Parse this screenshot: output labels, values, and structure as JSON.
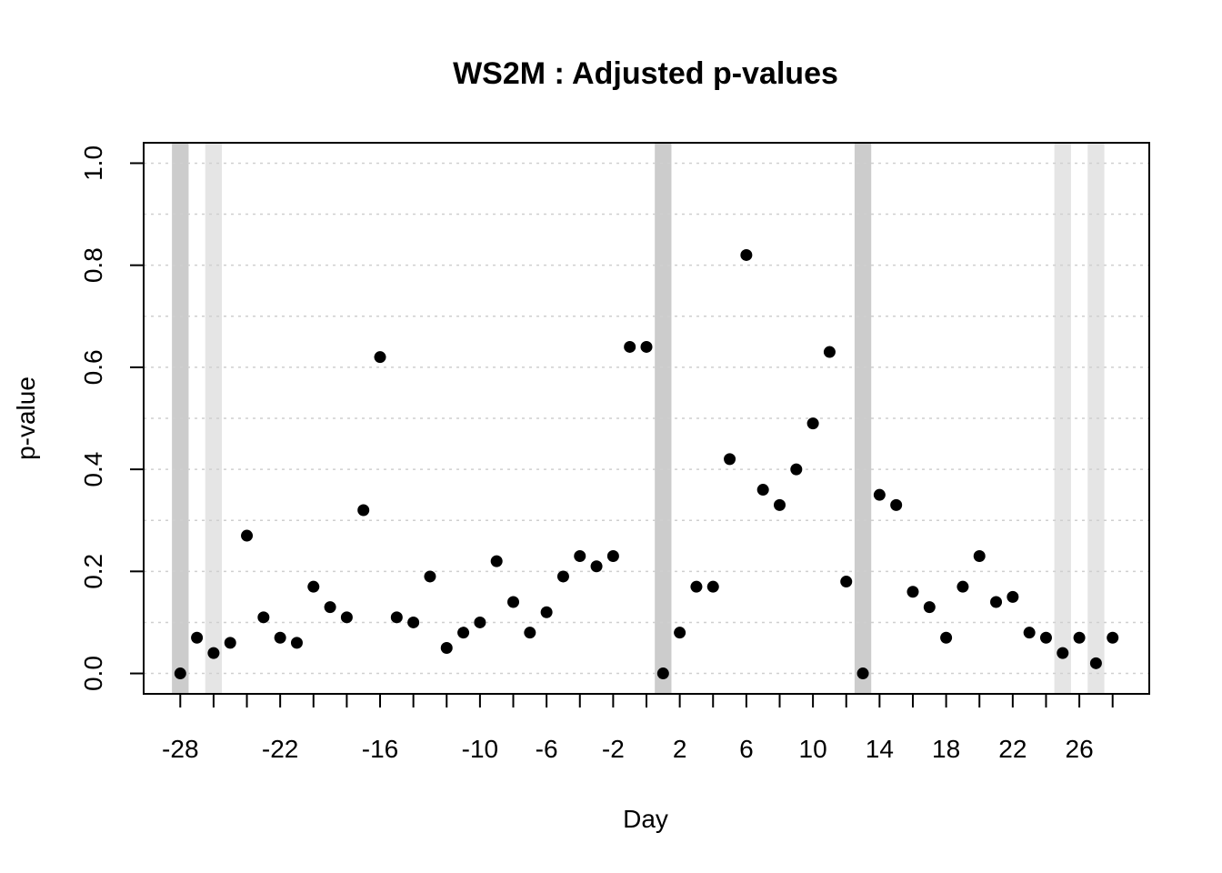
{
  "chart_data": {
    "type": "scatter",
    "title": "WS2M : Adjusted p-values",
    "xlabel": "Day",
    "ylabel": "p-value",
    "xlim": [
      -30.2,
      30.2
    ],
    "ylim": [
      -0.04,
      1.04
    ],
    "x_ticks": [
      -28,
      -22,
      -16,
      -10,
      -6,
      -2,
      2,
      6,
      10,
      14,
      18,
      22,
      26
    ],
    "x_minor_ticks": [
      -28,
      -26,
      -24,
      -22,
      -20,
      -18,
      -16,
      -14,
      -12,
      -10,
      -8,
      -6,
      -4,
      -2,
      0,
      2,
      4,
      6,
      8,
      10,
      12,
      14,
      16,
      18,
      20,
      22,
      24,
      26,
      28
    ],
    "y_ticks": [
      0.0,
      0.2,
      0.4,
      0.6,
      0.8,
      1.0
    ],
    "y_tick_labels": [
      "0.0",
      "0.2",
      "0.4",
      "0.6",
      "0.8",
      "1.0"
    ],
    "grid": true,
    "grid_y": [
      0.0,
      0.1,
      0.2,
      0.3,
      0.4,
      0.5,
      0.6,
      0.7,
      0.8,
      0.9,
      1.0
    ],
    "bands": [
      {
        "x": -28,
        "color": "#cccccc"
      },
      {
        "x": -26,
        "color": "#e5e5e5"
      },
      {
        "x": 1,
        "color": "#cccccc"
      },
      {
        "x": 13,
        "color": "#cccccc"
      },
      {
        "x": 25,
        "color": "#e5e5e5"
      },
      {
        "x": 27,
        "color": "#e5e5e5"
      }
    ],
    "point_color": "#000000",
    "series": [
      {
        "x": [
          -28,
          -27,
          -26,
          -25,
          -24,
          -23,
          -22,
          -21,
          -20,
          -19,
          -18,
          -17,
          -16,
          -15,
          -14,
          -13,
          -12,
          -11,
          -10,
          -9,
          -8,
          -7,
          -6,
          -5,
          -4,
          -3,
          -2,
          -1,
          0,
          1,
          2,
          3,
          4,
          5,
          6,
          7,
          8,
          9,
          10,
          11,
          12,
          13,
          14,
          15,
          16,
          17,
          18,
          19,
          20,
          21,
          22,
          23,
          24,
          25,
          26,
          27,
          28
        ],
        "y": [
          0.0,
          0.07,
          0.04,
          0.06,
          0.27,
          0.11,
          0.07,
          0.06,
          0.17,
          0.13,
          0.11,
          0.32,
          0.62,
          0.11,
          0.1,
          0.19,
          0.05,
          0.08,
          0.1,
          0.22,
          0.14,
          0.08,
          0.12,
          0.19,
          0.23,
          0.21,
          0.23,
          0.64,
          0.64,
          0.0,
          0.08,
          0.17,
          0.17,
          0.42,
          0.82,
          0.36,
          0.33,
          0.4,
          0.49,
          0.63,
          0.18,
          0.0,
          0.35,
          0.33,
          0.16,
          0.13,
          0.07,
          0.17,
          0.23,
          0.14,
          0.15,
          0.08,
          0.07,
          0.04,
          0.07,
          0.02,
          0.07
        ]
      }
    ]
  }
}
